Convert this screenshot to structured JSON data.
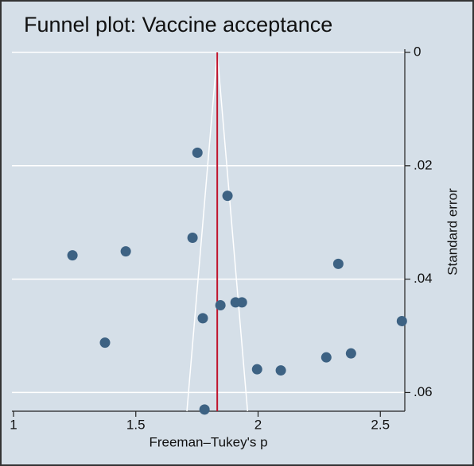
{
  "chart_data": {
    "type": "scatter",
    "title": "Funnel plot: Vaccine acceptance",
    "x_label": "Freeman–Tukey's p",
    "y_label": "Standard error",
    "x": [
      1.752,
      1.875,
      1.732,
      1.241,
      1.459,
      2.328,
      1.908,
      1.934,
      1.846,
      1.774,
      2.588,
      1.374,
      2.38,
      2.279,
      1.996,
      2.093,
      1.781
    ],
    "values": [
      0.0177,
      0.0253,
      0.0327,
      0.0358,
      0.0351,
      0.0373,
      0.0441,
      0.0441,
      0.0446,
      0.0469,
      0.0474,
      0.0512,
      0.0531,
      0.0538,
      0.0559,
      0.0561,
      0.063
    ],
    "color": "#3d6283",
    "xlim": [
      1,
      2.6
    ],
    "ylim": [
      0,
      0.0633
    ],
    "y_reversed": true,
    "xticks": [
      1,
      1.5,
      2,
      2.5
    ],
    "yticks": [
      0,
      {
        "value": 0.02,
        "label": ".02"
      },
      {
        "value": 0.04,
        "label": ".04"
      },
      {
        "value": 0.06,
        "label": ".06"
      }
    ],
    "grid": true,
    "pooled_x": 1.833,
    "pooled_color": "#c0142c",
    "funnel_y": [
      0,
      0.0633
    ],
    "funnel_x_left": [
      1.833,
      1.709
    ],
    "funnel_x_right": [
      1.833,
      1.957
    ],
    "funnel_color": "#ffffff"
  }
}
